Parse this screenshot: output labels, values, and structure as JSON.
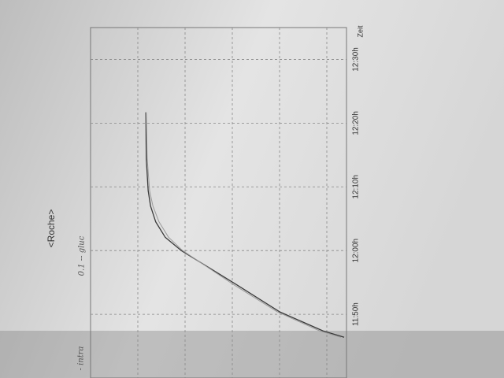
{
  "chart_data": {
    "type": "line",
    "title": "<Roche>",
    "x_label": "Zeit",
    "x": [
      706.4,
      707.4,
      710.4,
      714.7,
      720,
      722.1,
      724.5,
      727,
      729.4,
      734.4,
      741.7
    ],
    "series": [
      {
        "name": "- intra",
        "color": "#3a3a3a",
        "values": [
          5.37,
          4.92,
          4.0,
          3.08,
          1.92,
          1.58,
          1.38,
          1.27,
          1.22,
          1.18,
          1.17
        ]
      },
      {
        "name": "0.1 -- gluc",
        "color": "#9a9a9a",
        "values": [
          5.3,
          4.85,
          3.95,
          3.02,
          1.95,
          1.65,
          1.45,
          1.32,
          1.25,
          1.2,
          1.18
        ]
      }
    ],
    "xlim": [
      700,
      755
    ],
    "xticks": [
      {
        "value": 710,
        "label": "11:50h"
      },
      {
        "value": 720,
        "label": "12:00h"
      },
      {
        "value": 730,
        "label": "12:10h"
      },
      {
        "value": 740,
        "label": "12:20h"
      },
      {
        "value": 750,
        "label": "12:30h"
      }
    ],
    "ylim": [
      0,
      5.42
    ],
    "grid": true
  }
}
